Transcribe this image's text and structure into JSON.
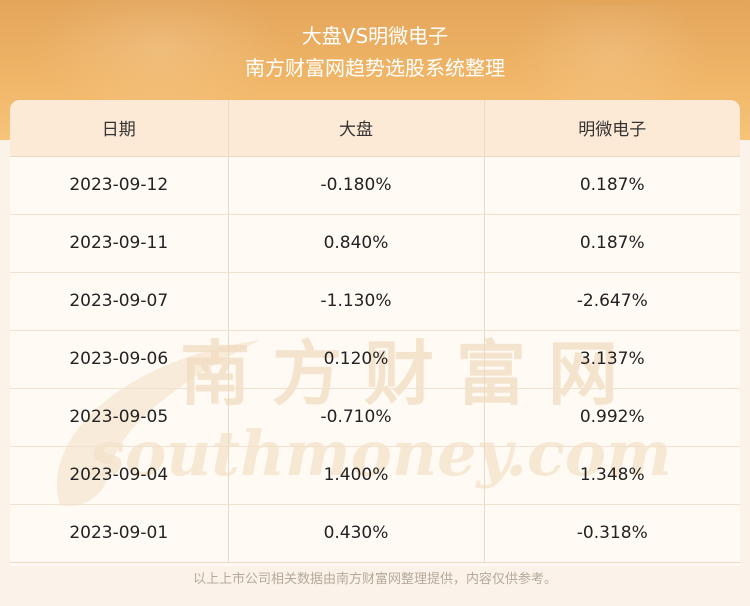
{
  "header": {
    "title": "大盘VS明微电子",
    "subtitle": "南方财富网趋势选股系统整理"
  },
  "table": {
    "columns": [
      "日期",
      "大盘",
      "明微电子"
    ],
    "rows": [
      [
        "2023-09-12",
        "-0.180%",
        "0.187%"
      ],
      [
        "2023-09-11",
        "0.840%",
        "0.187%"
      ],
      [
        "2023-09-07",
        "-1.130%",
        "-2.647%"
      ],
      [
        "2023-09-06",
        "0.120%",
        "3.137%"
      ],
      [
        "2023-09-05",
        "-0.710%",
        "0.992%"
      ],
      [
        "2023-09-04",
        "1.400%",
        "1.348%"
      ],
      [
        "2023-09-01",
        "0.430%",
        "-0.318%"
      ]
    ]
  },
  "watermark": {
    "cn": "南方财富网",
    "en": "southmoney.com"
  },
  "footer": "以上上市公司相关数据由南方财富网整理提供，内容仅供参考。",
  "colors": {
    "banner": "#f0b567",
    "header_row": "#fcead6",
    "panel": "#fffaf4",
    "watermark": "#f2dfc4"
  }
}
